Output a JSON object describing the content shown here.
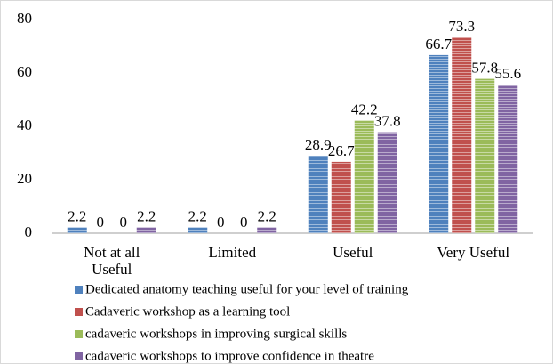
{
  "chart_data": {
    "type": "bar",
    "categories": [
      "Not at all Useful",
      "Limited",
      "Useful",
      "Very Useful"
    ],
    "series": [
      {
        "name": "Dedicated anatomy teaching useful for your level of training",
        "color": "#4f81bd",
        "values": [
          2.2,
          2.2,
          28.9,
          66.7
        ]
      },
      {
        "name": "Cadaveric workshop as a learning tool",
        "color": "#c0504d",
        "values": [
          0,
          0,
          26.7,
          73.3
        ]
      },
      {
        "name": "cadaveric workshops in improving surgical skills",
        "color": "#9bbb59",
        "values": [
          0,
          0,
          42.2,
          57.8
        ]
      },
      {
        "name": "cadaveric workshops to improve confidence in theatre",
        "color": "#8064a2",
        "values": [
          2.2,
          2.2,
          37.8,
          55.6
        ]
      }
    ],
    "ylim": [
      0,
      80
    ],
    "yticks": [
      0,
      20,
      40,
      60,
      80
    ],
    "grid": false,
    "legend": "bottom"
  }
}
